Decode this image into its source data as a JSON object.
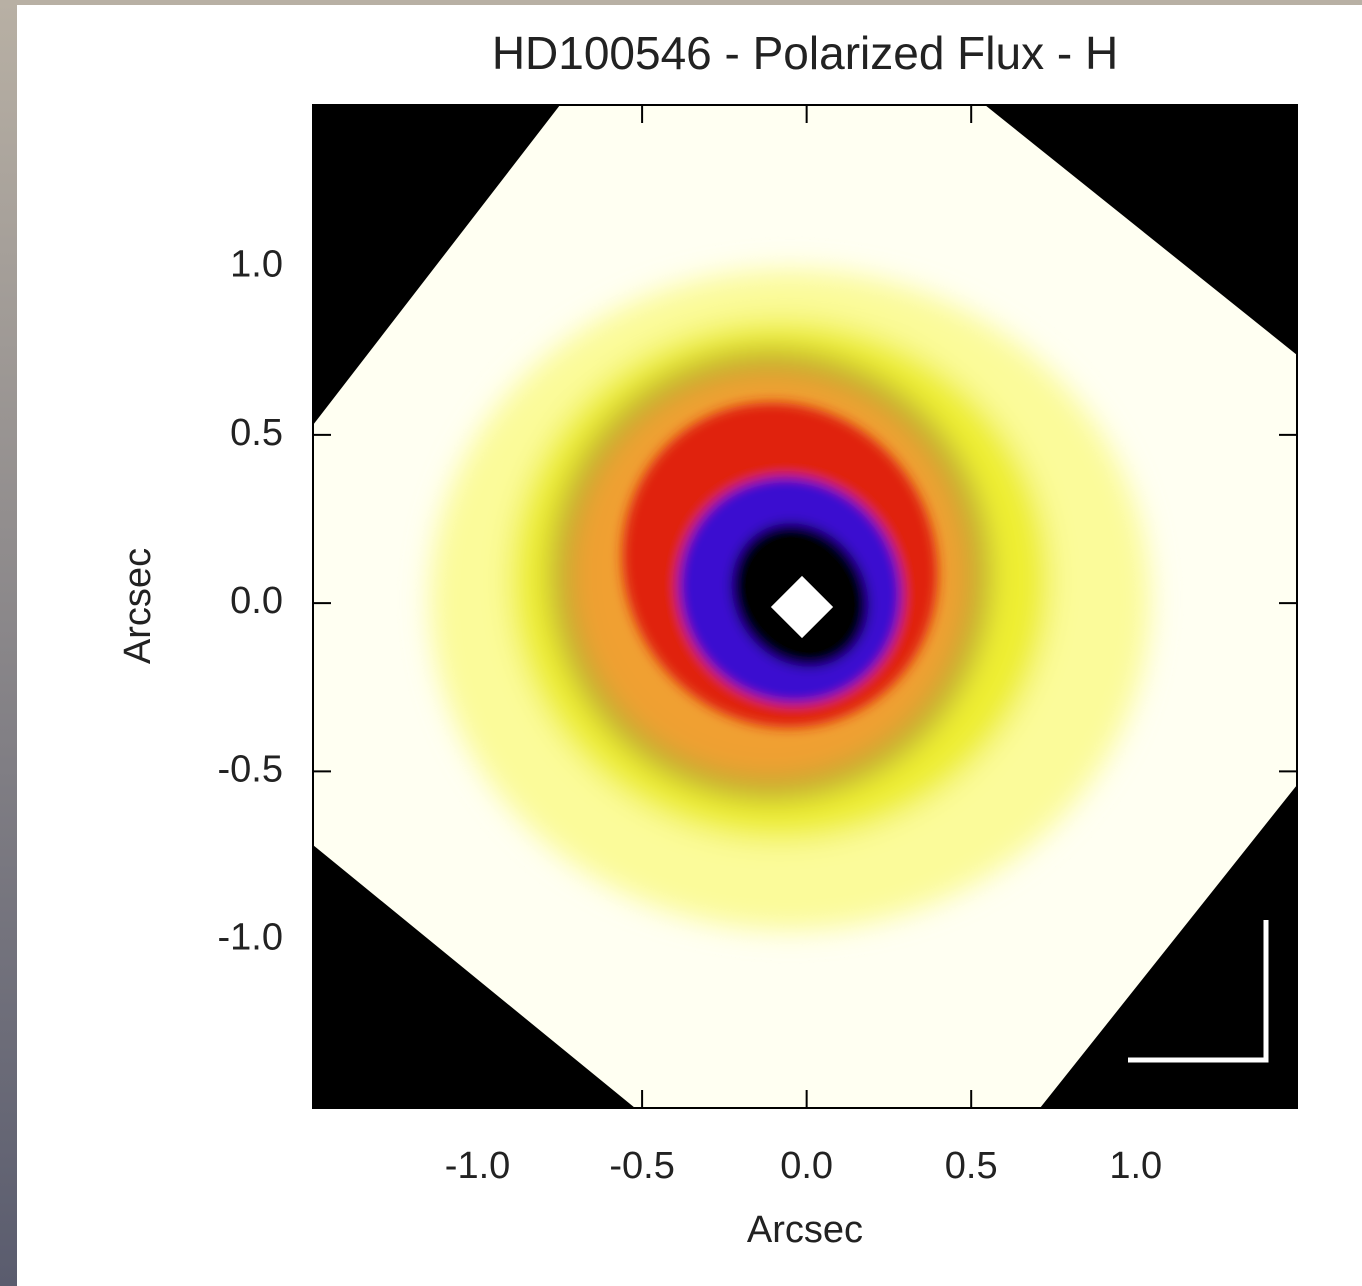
{
  "chart_data": {
    "type": "image",
    "title": "HD100546 - Polarized Flux - H",
    "x_label": "Arcsec",
    "y_label": "Arcsec",
    "xlim": [
      -1.5,
      1.49
    ],
    "ylim": [
      -1.5,
      1.48
    ],
    "xticks": [
      {
        "value": -1,
        "label": "-1.0"
      },
      -0.5,
      {
        "value": 0,
        "label": "0.0"
      },
      0.5,
      {
        "value": 1,
        "label": "1.0"
      }
    ],
    "yticks": [
      {
        "value": -1,
        "label": "-1.0"
      },
      -0.5,
      {
        "value": 0,
        "label": "0.0"
      },
      0.5,
      {
        "value": 1,
        "label": "1.0"
      }
    ]
  }
}
